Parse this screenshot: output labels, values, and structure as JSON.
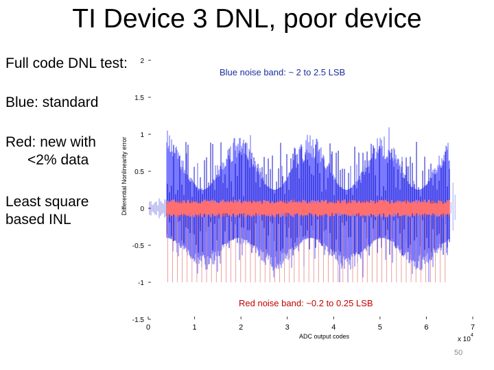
{
  "slide": {
    "title": "TI Device 3 DNL, poor device",
    "bullets": [
      {
        "lines": [
          "Full code DNL test:"
        ]
      },
      {
        "lines": [
          "Blue: standard"
        ]
      },
      {
        "lines": [
          "Red: new with",
          "<2% data"
        ]
      },
      {
        "lines": [
          "Least square",
          "based INL"
        ]
      }
    ],
    "blue_note": "Blue noise band: ~ 2 to 2.5 LSB",
    "red_note": "Red noise band: ~0.2 to 0.25 LSB",
    "page_number": "50"
  },
  "chart_data": {
    "type": "line",
    "xlabel": "ADC output codes",
    "ylabel": "Differential Nonlinearity error",
    "x_multiplier": "x 10",
    "x_multiplier_exponent": "4",
    "xlim": [
      0,
      7
    ],
    "ylim": [
      -1.5,
      2
    ],
    "x_ticks": [
      "0",
      "1",
      "2",
      "3",
      "4",
      "5",
      "6",
      "7"
    ],
    "y_ticks": [
      "2",
      "1.5",
      "1",
      "0.5",
      "0",
      "-0.5",
      "-1",
      "-1.5"
    ],
    "y_tick_values": [
      2,
      1.5,
      1,
      0.5,
      0,
      -0.5,
      -1,
      -1.5
    ],
    "series": [
      {
        "label": "standard",
        "color": "#5c5cf0",
        "x_range": [
          0.4,
          6.5
        ],
        "band": [
          -0.95,
          1.0
        ]
      },
      {
        "label": "new with <2% data",
        "color": "#ff5555",
        "x_range": [
          0.4,
          6.5
        ],
        "band": [
          -0.12,
          0.12
        ]
      }
    ],
    "colors": {
      "blue_band": "#7a7aff",
      "blue_spikes": "#1010cc",
      "red_band": "#ff6f6f"
    }
  }
}
